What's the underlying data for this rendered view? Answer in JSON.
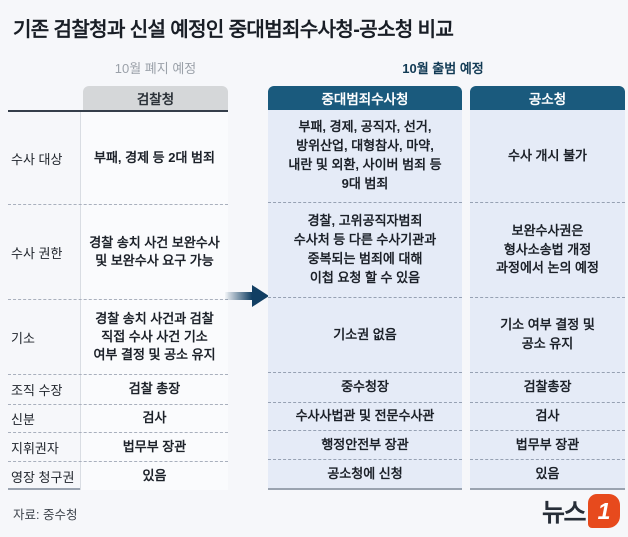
{
  "title": "기존 검찰청과 신설 예정인 중대범죄수사청-공소청 비교",
  "badges": {
    "old": "10월 폐지 예정",
    "new": "10월 출범 예정"
  },
  "headers": {
    "old": "검찰청",
    "new1": "중대범죄수사청",
    "new2": "공소청"
  },
  "rows": [
    {
      "label": "수사 대상",
      "old": "부패, 경제 등 2대 범죄",
      "new1": "부패, 경제, 공직자, 선거,\n방위산업, 대형참사, 마약,\n내란 및 외환, 사이버 범죄 등\n9대 범죄",
      "new2": "수사 개시 불가"
    },
    {
      "label": "수사 권한",
      "old": "경찰 송치 사건 보완수사\n및 보완수사 요구 가능",
      "new1": "경찰, 고위공직자범죄\n수사처 등 다른 수사기관과\n중복되는 범죄에 대해\n이첩 요청 할 수 있음",
      "new2": "보완수사권은\n형사소송법 개정\n과정에서 논의 예정"
    },
    {
      "label": "기소",
      "old": "경찰 송치 사건과 검찰\n직접 수사 사건 기소\n여부 결정 및 공소 유지",
      "new1": "기소권 없음",
      "new2": "기소 여부 결정 및\n공소 유지"
    },
    {
      "label": "조직 수장",
      "old": "검찰 총장",
      "new1": "중수청장",
      "new2": "검찰총장"
    },
    {
      "label": "신분",
      "old": "검사",
      "new1": "수사사법관 및 전문수사관",
      "new2": "검사"
    },
    {
      "label": "지휘권자",
      "old": "법무부 장관",
      "new1": "행정안전부 장관",
      "new2": "법무부 장관"
    },
    {
      "label": "영장 청구권",
      "old": "있음",
      "new1": "공소청에 신청",
      "new2": "있음"
    }
  ],
  "footer": {
    "source": "자료: 중수청",
    "logo_text": "뉴스",
    "logo_numeral": "1"
  },
  "colors": {
    "accent_teal": "#1a5a7d",
    "header_gray": "#d5d7d9",
    "panel_blue": "#e5ebf7",
    "arrow_navy": "#123f63",
    "logo_orange": "#e74a1d"
  }
}
